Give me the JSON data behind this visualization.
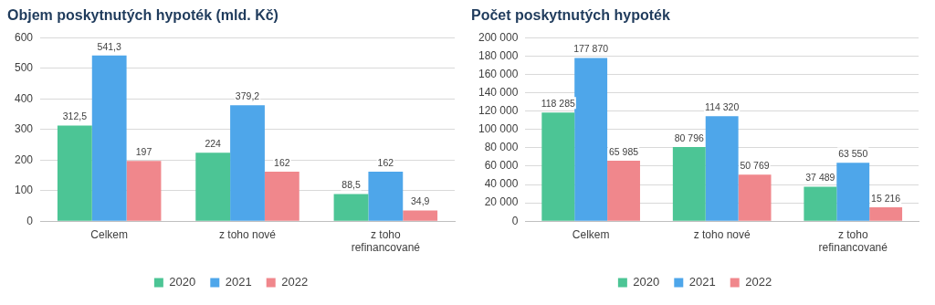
{
  "chart_data": [
    {
      "type": "bar",
      "title": "Objem poskytnutých hypoték (mld. Kč)",
      "categories": [
        "Celkem",
        "z toho nové",
        "z toho refinancované"
      ],
      "series": [
        {
          "name": "2020",
          "color": "#4cc595",
          "values": [
            312.5,
            224,
            88.5
          ],
          "value_labels": [
            "312,5",
            "224",
            "88,5"
          ]
        },
        {
          "name": "2021",
          "color": "#4ea6ea",
          "values": [
            541.3,
            379.2,
            162
          ],
          "value_labels": [
            "541,3",
            "379,2",
            "162"
          ]
        },
        {
          "name": "2022",
          "color": "#f0878c",
          "values": [
            197,
            162,
            34.9
          ],
          "value_labels": [
            "197",
            "162",
            "34,9"
          ]
        }
      ],
      "ylim": [
        0,
        600
      ],
      "yticks": [
        0,
        100,
        200,
        300,
        400,
        500,
        600
      ],
      "grid": "y",
      "legend": "bottom"
    },
    {
      "type": "bar",
      "title": "Počet poskytnutých hypoték",
      "categories": [
        "Celkem",
        "z toho nové",
        "z toho refinancované"
      ],
      "series": [
        {
          "name": "2020",
          "color": "#4cc595",
          "values": [
            118285,
            80796,
            37489
          ],
          "value_labels": [
            "118 285",
            "80 796",
            "37 489"
          ]
        },
        {
          "name": "2021",
          "color": "#4ea6ea",
          "values": [
            177870,
            114320,
            63550
          ],
          "value_labels": [
            "177 870",
            "114 320",
            "63 550"
          ]
        },
        {
          "name": "2022",
          "color": "#f0878c",
          "values": [
            65985,
            50769,
            15216
          ],
          "value_labels": [
            "65 985",
            "50 769",
            "15 216"
          ]
        }
      ],
      "ylim": [
        0,
        200000
      ],
      "yticks": [
        0,
        {
          "value": 20000,
          "label": "20 000"
        },
        {
          "value": 40000,
          "label": "40 000"
        },
        {
          "value": 60000,
          "label": "60 000"
        },
        {
          "value": 80000,
          "label": "80 000"
        },
        {
          "value": 100000,
          "label": "100 000"
        },
        {
          "value": 120000,
          "label": "120 000"
        },
        {
          "value": 140000,
          "label": "140 000"
        },
        {
          "value": 160000,
          "label": "160 000"
        },
        {
          "value": 180000,
          "label": "180 000"
        },
        {
          "value": 200000,
          "label": "200 000"
        }
      ],
      "grid": "y",
      "legend": "bottom"
    }
  ]
}
